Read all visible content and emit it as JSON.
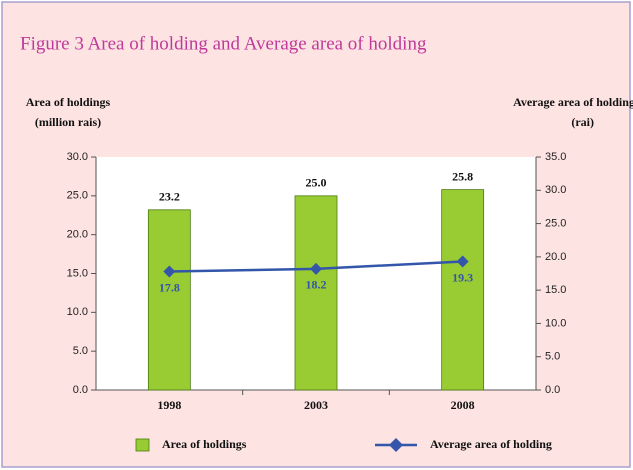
{
  "chart_data": {
    "type": "combo",
    "title": "Figure 3 Area of holding and Average area of holding",
    "ylabel": [
      "Area of holdings",
      "(million rais)"
    ],
    "y2label": [
      "Average area of holding",
      "(rai)"
    ],
    "categories": [
      "1998",
      "2003",
      "2008"
    ],
    "series": [
      {
        "name": "Area of holdings",
        "type": "bar",
        "axis": "y",
        "color": "#99cc33",
        "values": [
          23.2,
          25.0,
          25.8
        ],
        "value_labels": [
          "23.2",
          "25.0",
          "25.8"
        ]
      },
      {
        "name": "Average area of holding",
        "type": "line",
        "axis": "y2",
        "color": "#3355aa",
        "values": [
          17.8,
          18.2,
          19.3
        ]
      }
    ],
    "ylim": [
      0,
      30
    ],
    "yticks": [
      {
        "value": 0,
        "label": "0.0"
      },
      {
        "value": 5,
        "label": "5.0"
      },
      {
        "value": 10,
        "label": "10.0"
      },
      {
        "value": 15,
        "label": "15.0"
      },
      {
        "value": 20,
        "label": "20.0"
      },
      {
        "value": 25,
        "label": "25.0"
      },
      {
        "value": 30,
        "label": "30.0"
      }
    ],
    "y2lim": [
      0,
      35
    ],
    "y2ticks": [
      {
        "value": 0,
        "label": "0.0"
      },
      {
        "value": 5,
        "label": "5.0"
      },
      {
        "value": 10,
        "label": "10.0"
      },
      {
        "value": 15,
        "label": "15.0"
      },
      {
        "value": 20,
        "label": "20.0"
      },
      {
        "value": 25,
        "label": "25.0"
      },
      {
        "value": 30,
        "label": "30.0"
      },
      {
        "value": 35,
        "label": "35.0"
      }
    ],
    "grid": false
  }
}
